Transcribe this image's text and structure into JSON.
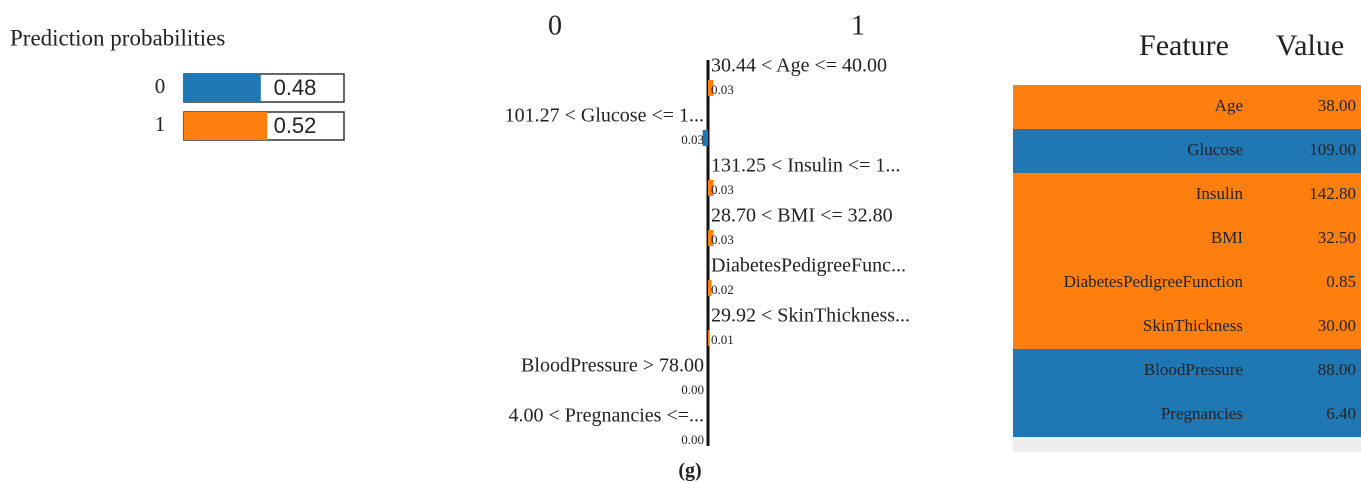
{
  "probabilities": {
    "title": "Prediction probabilities",
    "classes": [
      "0",
      "1"
    ],
    "values": [
      0.48,
      0.52
    ],
    "colors": [
      "#1f77b4",
      "#ff7f0e"
    ]
  },
  "explanation": {
    "class_labels": [
      "0",
      "1"
    ],
    "features": [
      "30.44 < Age <= 40.00",
      "101.27 < Glucose <= 1...",
      "131.25 < Insulin <= 1...",
      "28.70 < BMI <= 32.80",
      "DiabetesPedigreeFunc...",
      "29.92 < SkinThickness...",
      "BloodPressure > 78.00",
      "4.00 < Pregnancies <=..."
    ],
    "classes": [
      "1",
      "0",
      "1",
      "1",
      "1",
      "1",
      "0",
      "0"
    ],
    "values": [
      0.03,
      0.03,
      0.03,
      0.03,
      0.02,
      0.01,
      0.0,
      0.0
    ],
    "value_labels": [
      "0.03",
      "0.03",
      "0.03",
      "0.03",
      "0.02",
      "0.01",
      "0.00",
      "0.00"
    ]
  },
  "table": {
    "header": [
      "Feature",
      "Value"
    ],
    "rows": [
      [
        "Age",
        "38.00"
      ],
      [
        "Glucose",
        "109.00"
      ],
      [
        "Insulin",
        "142.80"
      ],
      [
        "BMI",
        "32.50"
      ],
      [
        "DiabetesPedigreeFunction",
        "0.85"
      ],
      [
        "SkinThickness",
        "30.00"
      ],
      [
        "BloodPressure",
        "88.00"
      ],
      [
        "Pregnancies",
        "6.40"
      ]
    ]
  },
  "caption": "(g)"
}
